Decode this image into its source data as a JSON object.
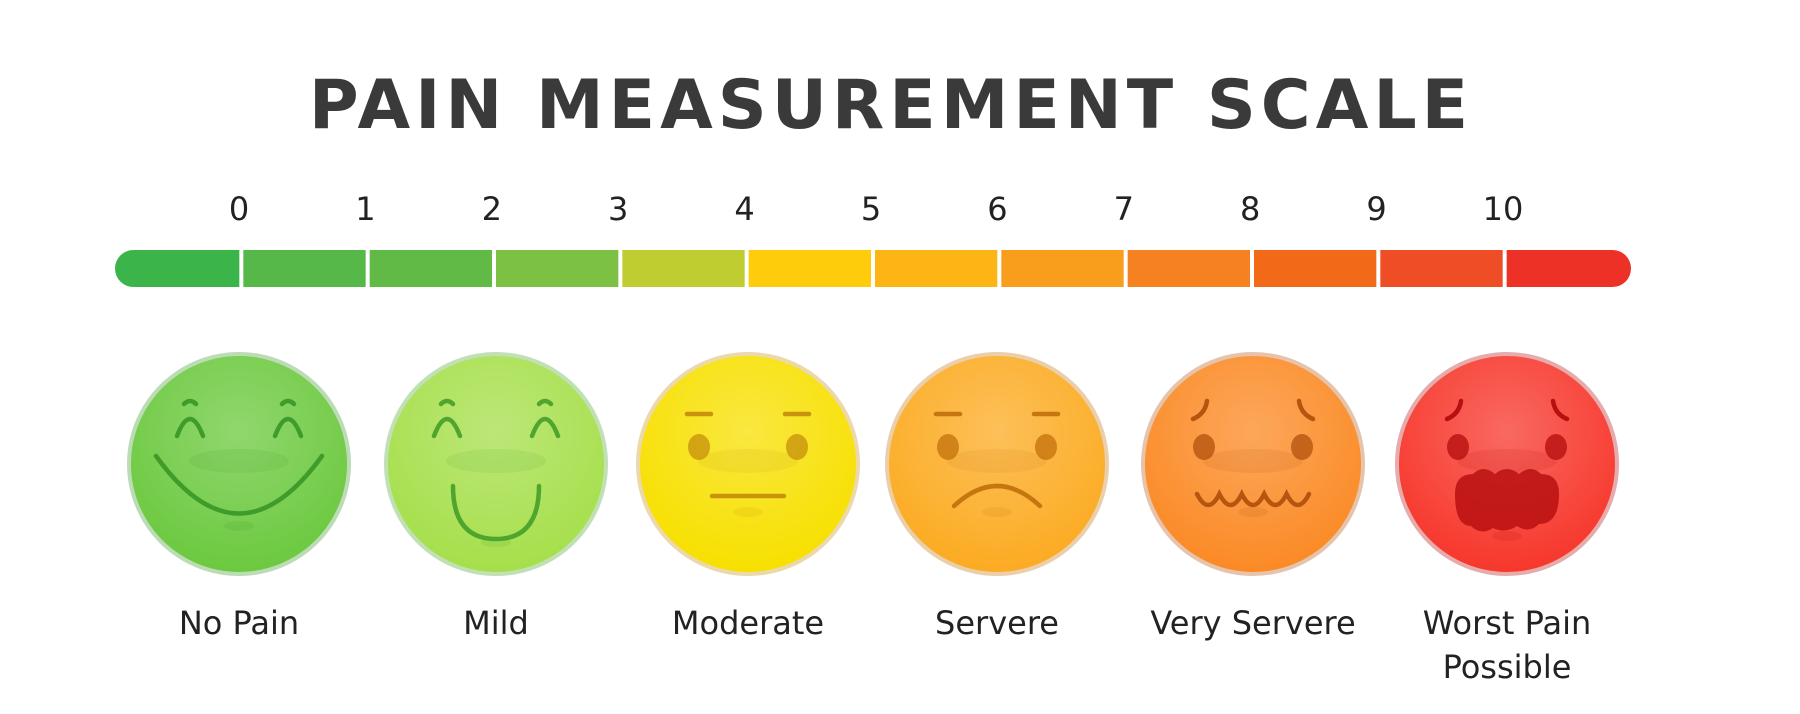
{
  "title": "PAIN MEASUREMENT SCALE",
  "scale": {
    "numbers": [
      "0",
      "1",
      "2",
      "3",
      "4",
      "5",
      "6",
      "7",
      "8",
      "9",
      "10"
    ],
    "segment_colors": [
      "#3bb54a",
      "#55b848",
      "#62ba46",
      "#7cc143",
      "#bfcd31",
      "#fecc0a",
      "#fdb515",
      "#f99d1c",
      "#f68121",
      "#f26a18",
      "#ef4d26",
      "#ed3127"
    ]
  },
  "faces": [
    {
      "label": [
        "No Pain"
      ],
      "color": "#6cc93f",
      "shade": "#3f9b2a",
      "expression": "big-smile"
    },
    {
      "label": [
        "Mild"
      ],
      "color": "#a6df4b",
      "shade": "#4fa52e",
      "expression": "smile"
    },
    {
      "label": [
        "Moderate"
      ],
      "color": "#f7e000",
      "shade": "#c9930e",
      "expression": "neutral"
    },
    {
      "label": [
        "Servere"
      ],
      "color": "#fcab22",
      "shade": "#c6760f",
      "expression": "frown"
    },
    {
      "label": [
        "Very Servere"
      ],
      "color": "#fb8a25",
      "shade": "#b65510",
      "expression": "wavy"
    },
    {
      "label": [
        "Worst Pain",
        "Possible"
      ],
      "color": "#f7372c",
      "shade": "#b81010",
      "expression": "crying"
    }
  ]
}
